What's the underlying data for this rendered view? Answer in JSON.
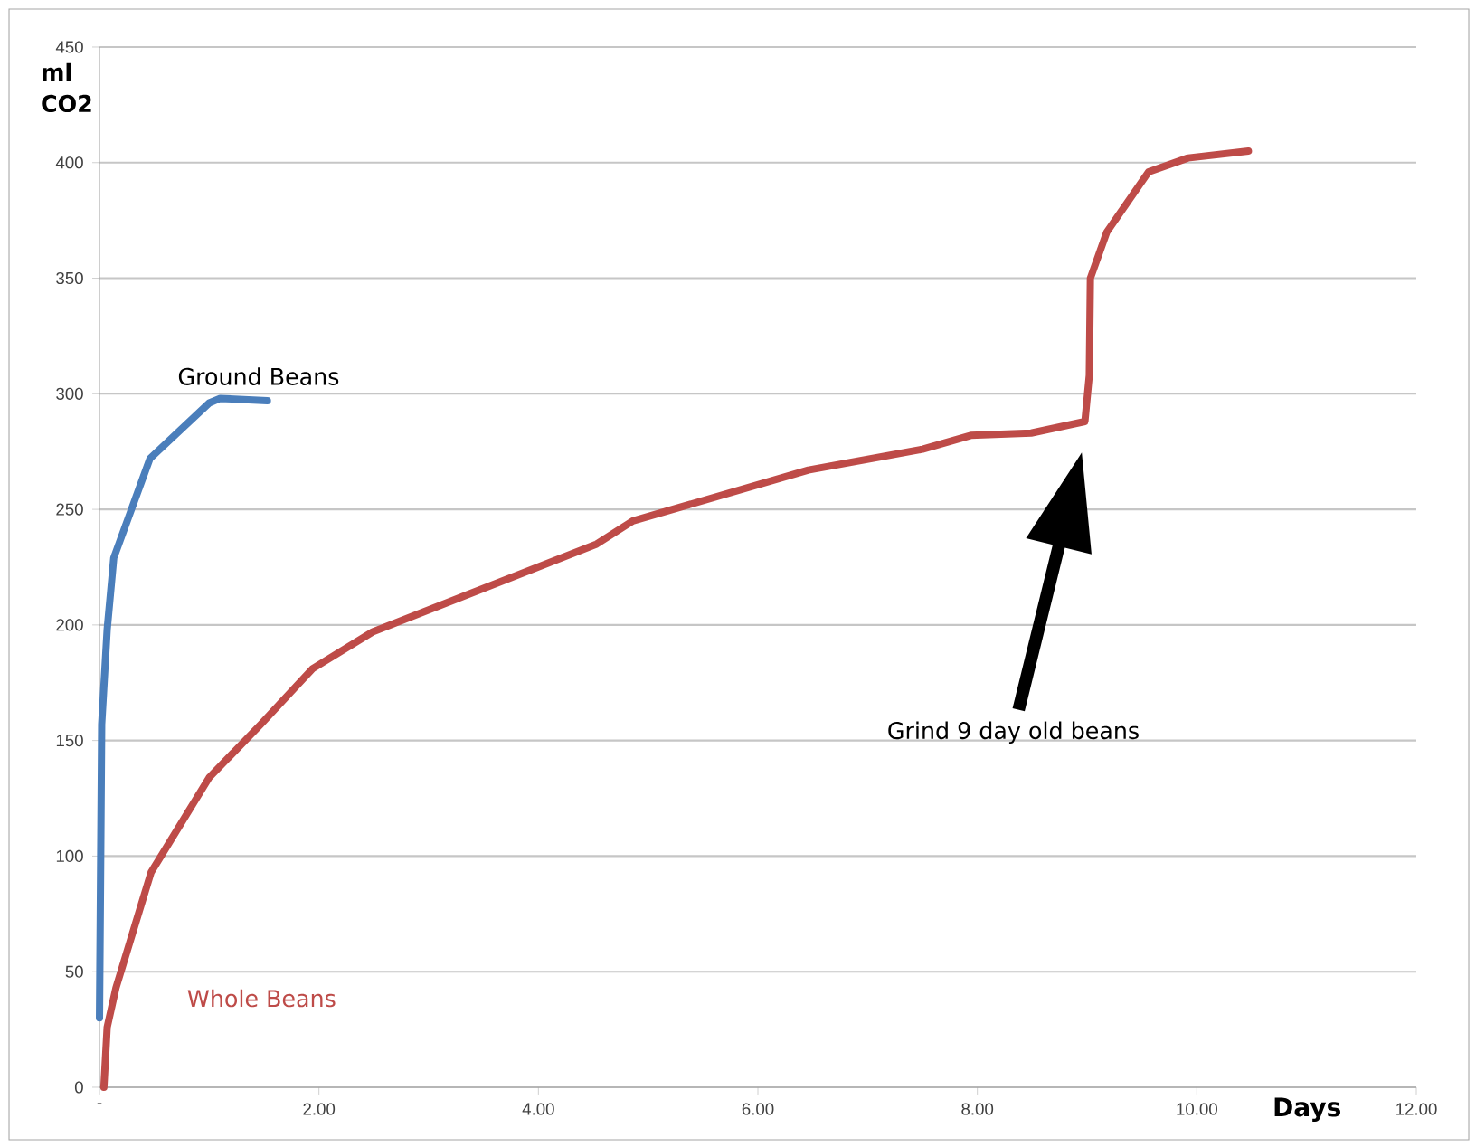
{
  "chart_data": {
    "type": "line",
    "xlabel": "Days",
    "ylabel": "ml CO2",
    "xlim": [
      0,
      12
    ],
    "ylim": [
      0,
      450
    ],
    "xticks": [
      {
        "value": 0,
        "label": "-"
      },
      {
        "value": 2,
        "label": "2.00"
      },
      {
        "value": 4,
        "label": "4.00"
      },
      {
        "value": 6,
        "label": "6.00"
      },
      {
        "value": 8,
        "label": "8.00"
      },
      {
        "value": 10,
        "label": "10.00"
      },
      {
        "value": 12,
        "label": "12.00"
      }
    ],
    "yticks": [
      0,
      50,
      100,
      150,
      200,
      250,
      300,
      350,
      400,
      450
    ],
    "grid": "y",
    "legend": false,
    "marker": "none",
    "line_style": "solid",
    "series": [
      {
        "name": "Ground Beans",
        "color": "#4a7ebb",
        "x": [
          0,
          0.02,
          0.07,
          0.13,
          0.46,
          1.0,
          1.1,
          1.53
        ],
        "values": [
          30,
          157,
          198,
          229,
          272,
          296,
          298,
          297
        ]
      },
      {
        "name": "Whole Beans",
        "color": "#be4b48",
        "x": [
          0.04,
          0.07,
          0.15,
          0.47,
          1.0,
          1.47,
          1.94,
          2.49,
          4.53,
          4.86,
          6.46,
          7.5,
          7.94,
          8.49,
          8.98,
          9.02,
          9.03,
          9.18,
          9.56,
          9.92,
          10.47
        ],
        "values": [
          0,
          26,
          43,
          93,
          134,
          157,
          181,
          197,
          235,
          245,
          267,
          276,
          282,
          283,
          288,
          308,
          350,
          370,
          396,
          402,
          405
        ]
      }
    ],
    "annotations": [
      "Grind 9 day old beans"
    ]
  }
}
